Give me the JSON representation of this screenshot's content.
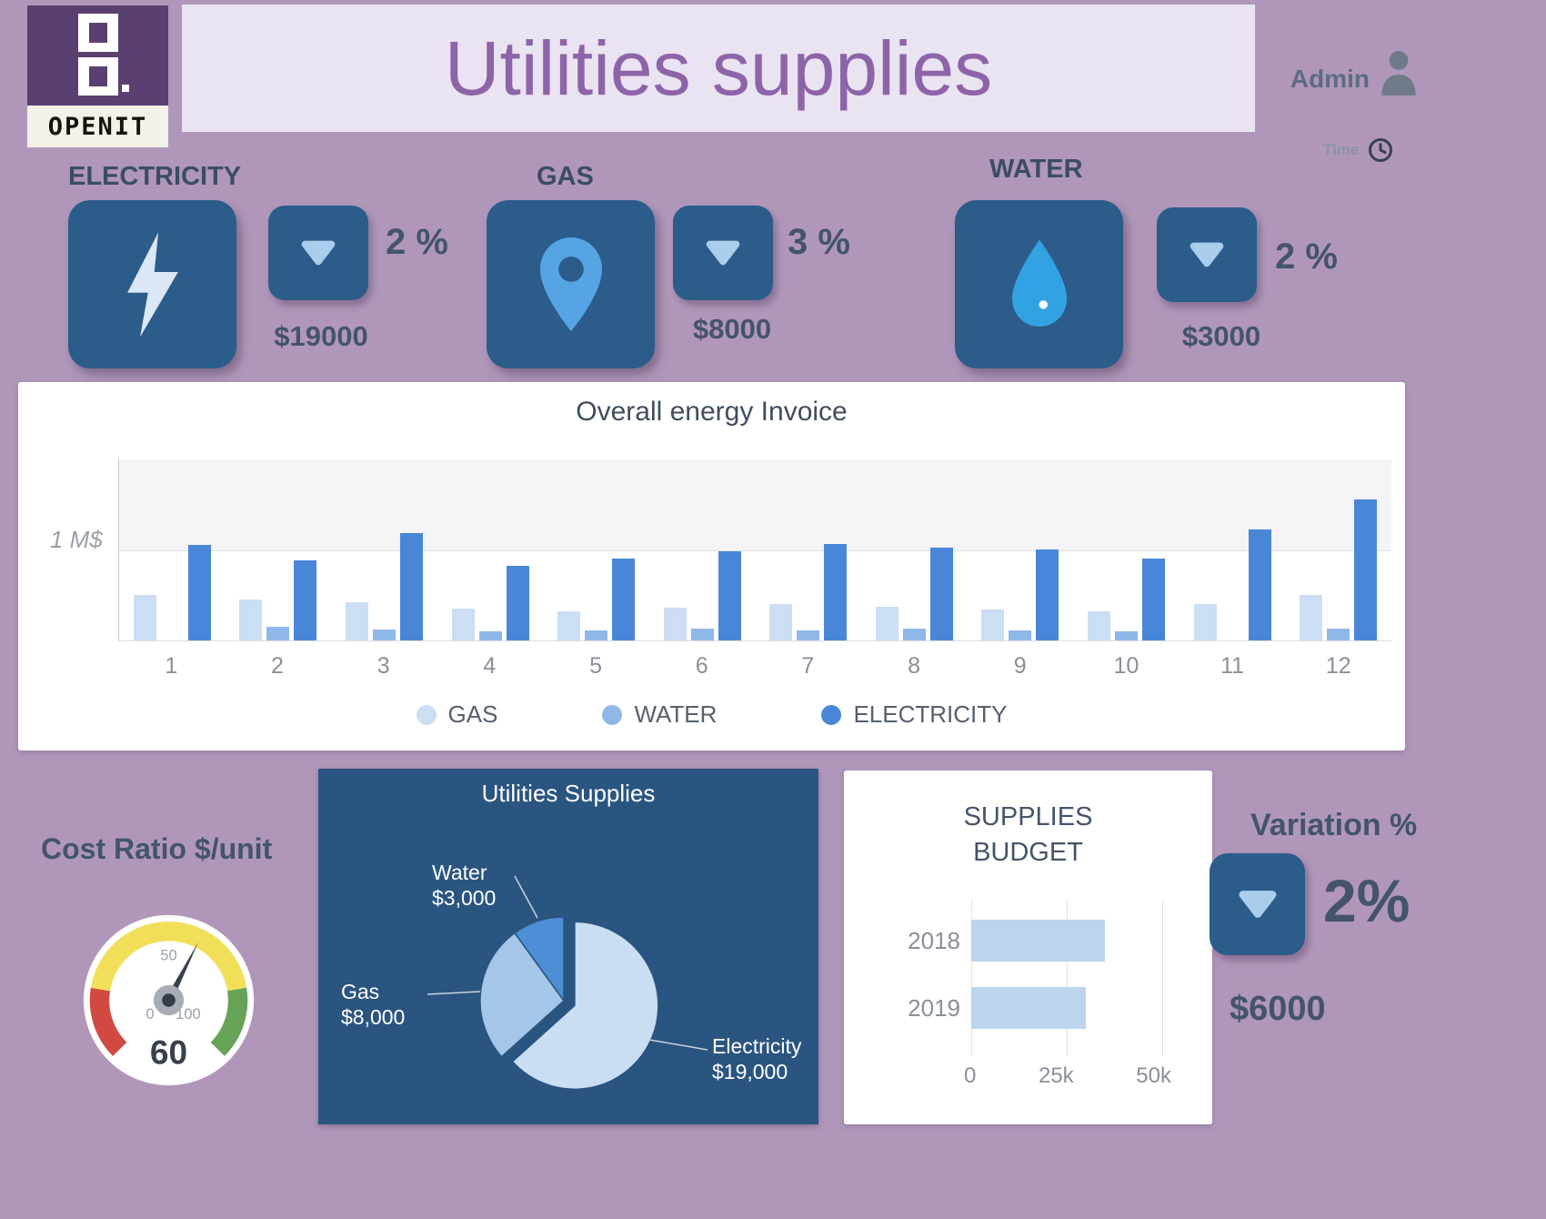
{
  "header": {
    "logo_text": "OPENIT",
    "title": "Utilities supplies",
    "admin_label": "Admin",
    "time_label": "Time"
  },
  "kpis": {
    "electricity": {
      "label": "ELECTRICITY",
      "percent": "2 %",
      "amount": "$19000"
    },
    "gas": {
      "label": "GAS",
      "percent": "3 %",
      "amount": "$8000"
    },
    "water": {
      "label": "WATER",
      "percent": "2 %",
      "amount": "$3000"
    }
  },
  "variation": {
    "title": "Variation %",
    "percent": "2%",
    "amount": "$6000"
  },
  "chart_data": [
    {
      "id": "invoice",
      "type": "bar",
      "title": "Overall energy Invoice",
      "unit": "M$",
      "ymax": 2,
      "gridline_value": 1,
      "gridline_label": "1 M$",
      "legend_position": "bottom",
      "categories": [
        "1",
        "2",
        "3",
        "4",
        "5",
        "6",
        "7",
        "8",
        "9",
        "10",
        "11",
        "12"
      ],
      "series": [
        {
          "name": "GAS",
          "color": "#cbdef4",
          "values": [
            0.5,
            0.45,
            0.42,
            0.35,
            0.32,
            0.36,
            0.4,
            0.37,
            0.34,
            0.32,
            0.4,
            0.5
          ]
        },
        {
          "name": "WATER",
          "color": "#8fb8e8",
          "values": [
            0,
            0.15,
            0.12,
            0.1,
            0.11,
            0.13,
            0.11,
            0.13,
            0.11,
            0.1,
            0,
            0.13
          ]
        },
        {
          "name": "ELECTRICITY",
          "color": "#4a86d8",
          "values": [
            1.05,
            0.88,
            1.18,
            0.82,
            0.9,
            0.98,
            1.06,
            1.02,
            1.0,
            0.9,
            1.22,
            1.55
          ]
        }
      ]
    },
    {
      "id": "cost_ratio",
      "type": "gauge",
      "title": "Cost Ratio $/unit",
      "value": 60,
      "min": 0,
      "max": 100,
      "tick_labels": [
        "0",
        "50",
        "100"
      ],
      "segments": [
        {
          "to": 20,
          "color": "#d04a42"
        },
        {
          "to": 80,
          "color": "#f2df59"
        },
        {
          "to": 100,
          "color": "#67a356"
        }
      ]
    },
    {
      "id": "supplies_pie",
      "type": "pie",
      "title": "Utilities Supplies",
      "slices": [
        {
          "label": "Electricity",
          "value": 19000,
          "value_label": "$19,000",
          "color": "#c9ddf3",
          "exploded": true
        },
        {
          "label": "Gas",
          "value": 8000,
          "value_label": "$8,000",
          "color": "#a4c6e8"
        },
        {
          "label": "Water",
          "value": 3000,
          "value_label": "$3,000",
          "color": "#4e8ed6"
        }
      ]
    },
    {
      "id": "budget",
      "type": "bar",
      "orientation": "horizontal",
      "title_lines": [
        "SUPPLIES",
        "BUDGET"
      ],
      "categories": [
        "2018",
        "2019"
      ],
      "values": [
        35000,
        30000
      ],
      "bar_color": "#bdd4ee",
      "xticks": [
        "0",
        "25k",
        "50k"
      ],
      "xlim": [
        0,
        50000
      ]
    }
  ]
}
